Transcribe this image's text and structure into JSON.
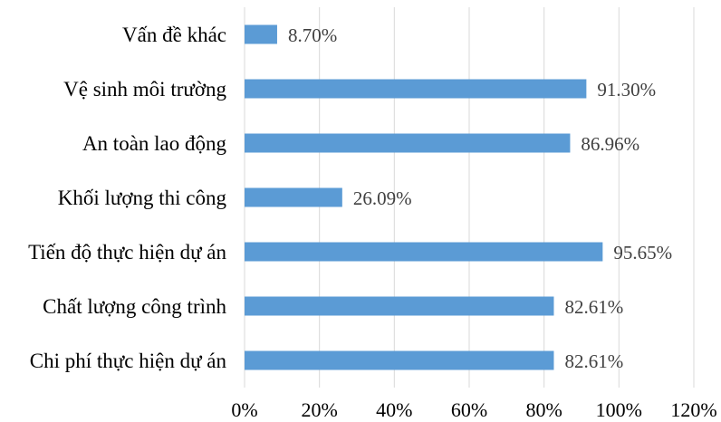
{
  "chart_data": {
    "type": "bar",
    "orientation": "horizontal",
    "categories": [
      "Vấn đề khác",
      "Vệ sinh môi trường",
      "An toàn lao động",
      "Khối lượng thi công",
      "Tiến độ thực hiện dự án",
      "Chất lượng công trình",
      "Chi phí thực hiện dự án"
    ],
    "values": [
      8.7,
      91.3,
      86.96,
      26.09,
      95.65,
      82.61,
      82.61
    ],
    "data_labels": [
      "8.70%",
      "91.30%",
      "86.96%",
      "26.09%",
      "95.65%",
      "82.61%",
      "82.61%"
    ],
    "x_ticks": [
      "0%",
      "20%",
      "40%",
      "60%",
      "80%",
      "100%",
      "120%"
    ],
    "xlim": [
      0,
      120
    ],
    "grid": true,
    "bar_color": "#5b9bd5",
    "title": "",
    "xlabel": "",
    "ylabel": ""
  }
}
